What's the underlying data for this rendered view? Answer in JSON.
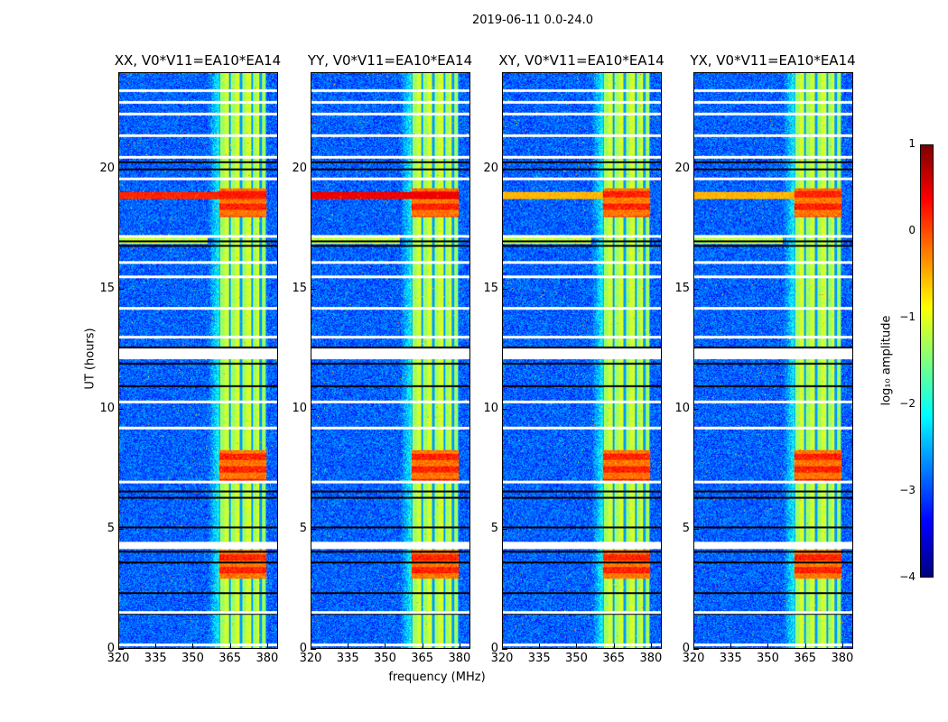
{
  "chart_data": {
    "type": "heatmap",
    "title": "2019-06-11 0.0-24.0",
    "xlabel": "frequency (MHz)",
    "ylabel": "UT (hours)",
    "xlim": [
      320,
      384.4
    ],
    "ylim": [
      0,
      24
    ],
    "xticks": [
      320,
      335,
      350,
      365,
      380
    ],
    "yticks": [
      0,
      5,
      10,
      15,
      20
    ],
    "panels": [
      {
        "title": "XX, V0*V11=EA10*EA14",
        "rfi_row_strength": 1.0
      },
      {
        "title": "YY, V0*V11=EA10*EA14",
        "rfi_row_strength": 1.2
      },
      {
        "title": "XY, V0*V11=EA10*EA14",
        "rfi_row_strength": 0.4
      },
      {
        "title": "YX, V0*V11=EA10*EA14",
        "rfi_row_strength": 0.4
      }
    ],
    "colorbar": {
      "label": "log₁₀ amplitude",
      "colormap": "jet",
      "range": [
        -4,
        1
      ],
      "ticks": [
        "1",
        "0",
        "−1",
        "−2",
        "−3",
        "−4"
      ]
    },
    "background_log_amplitude": -2.9,
    "bright_band_MHz": [
      360.5,
      380
    ],
    "subband_edges_MHz": [
      360.5,
      365,
      369.5,
      374,
      377.5,
      380
    ],
    "high_amplitude_intervals_h": [
      [
        2.9,
        4.1
      ],
      [
        7.0,
        8.3
      ],
      [
        18.0,
        19.2
      ]
    ],
    "flagged_rows_h": [
      0.15,
      1.5,
      4.2,
      4.3,
      4.4,
      6.95,
      9.2,
      10.3,
      12.15,
      12.3,
      12.45,
      13.0,
      14.2,
      15.5,
      16.1,
      17.2,
      19.6,
      20.5,
      21.4,
      22.3,
      22.8,
      23.3
    ],
    "dark_rows_h": [
      1.45,
      2.3,
      3.6,
      4.05,
      5.05,
      6.3,
      6.55,
      10.95,
      11.9,
      12.55,
      16.8,
      17.0,
      20.0,
      20.3
    ]
  }
}
